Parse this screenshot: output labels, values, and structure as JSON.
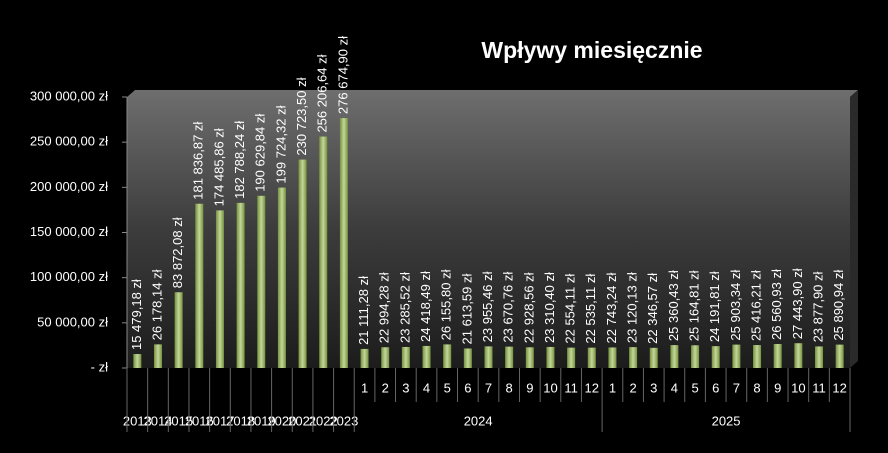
{
  "chart_data": {
    "type": "bar",
    "title": "Wpływy miesięcznie",
    "categories": [
      "2013",
      "2014",
      "2015",
      "2016",
      "2017",
      "2018",
      "2019",
      "2020",
      "2021",
      "2022",
      "2023",
      "1",
      "2",
      "3",
      "4",
      "5",
      "6",
      "7",
      "8",
      "9",
      "10",
      "11",
      "12",
      "1",
      "2",
      "3",
      "4",
      "5",
      "6",
      "7",
      "8",
      "9",
      "10",
      "11",
      "12"
    ],
    "groups": [
      {
        "name": "2024",
        "size": 12
      },
      {
        "name": "2025",
        "size": 12
      }
    ],
    "values": [
      15479.18,
      26178.14,
      83872.08,
      181836.87,
      174485.86,
      182788.24,
      190629.84,
      199724.32,
      230723.5,
      256206.64,
      276674.9,
      21111.28,
      22994.28,
      23285.52,
      24418.49,
      26155.8,
      21613.59,
      23955.46,
      23670.76,
      22928.56,
      23310.4,
      22554.11,
      22535.11,
      22743.24,
      23120.13,
      22346.57,
      25360.43,
      25164.81,
      24191.81,
      25903.34,
      25416.21,
      26560.93,
      27443.9,
      23877.9,
      25890.94
    ],
    "value_labels": [
      "15 479,18 zł",
      "26 178,14 zł",
      "83 872,08 zł",
      "181 836,87 zł",
      "174 485,86 zł",
      "182 788,24 zł",
      "190 629,84 zł",
      "199 724,32 zł",
      "230 723,50 zł",
      "256 206,64 zł",
      "276 674,90 zł",
      "21 111,28 zł",
      "22 994,28 zł",
      "23 285,52 zł",
      "24 418,49 zł",
      "26 155,80 zł",
      "21 613,59 zł",
      "23 955,46 zł",
      "23 670,76 zł",
      "22 928,56 zł",
      "23 310,40 zł",
      "22 554,11 zł",
      "22 535,11 zł",
      "22 743,24 zł",
      "23 120,13 zł",
      "22 346,57 zł",
      "25 360,43 zł",
      "25 164,81 zł",
      "24 191,81 zł",
      "25 903,34 zł",
      "25 416,21 zł",
      "26 560,93 zł",
      "27 443,90 zł",
      "23 877,90 zł",
      "25 890,94 zł"
    ],
    "color": "#9bbb59",
    "ylim": [
      0,
      300000
    ],
    "yticks": [
      {
        "value": 0,
        "label": "-   zł"
      },
      {
        "value": 50000,
        "label": "50 000,00 zł"
      },
      {
        "value": 100000,
        "label": "100 000,00 zł"
      },
      {
        "value": 150000,
        "label": "150 000,00 zł"
      },
      {
        "value": 200000,
        "label": "200 000,00 zł"
      },
      {
        "value": 250000,
        "label": "250 000,00 zł"
      },
      {
        "value": 300000,
        "label": "300 000,00 zł"
      }
    ]
  }
}
